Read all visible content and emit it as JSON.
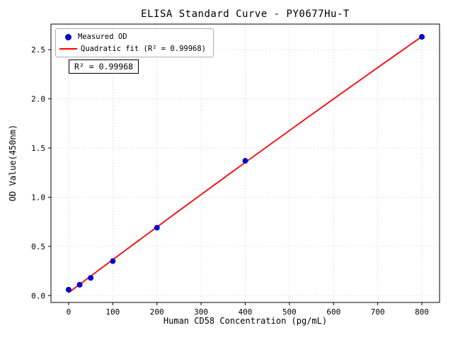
{
  "chart_data": {
    "type": "scatter",
    "title": "ELISA Standard Curve - PY0677Hu-T",
    "xlabel": "Human CD58 Concentration (pg/mL)",
    "ylabel": "OD Value(450nm)",
    "x": [
      0,
      25,
      50,
      100,
      200,
      400,
      800
    ],
    "series": [
      {
        "name": "Measured OD",
        "kind": "scatter",
        "color": "#0000cd",
        "values": [
          0.06,
          0.11,
          0.18,
          0.35,
          0.69,
          1.37,
          2.63
        ]
      },
      {
        "name": "Quadratic fit (R² = 0.99968)",
        "kind": "quadratic-fit-line",
        "color": "#ff0000"
      }
    ],
    "legend_position": "upper left",
    "annotation": "R² = 0.99968",
    "r_squared": 0.99968,
    "xlim": [
      -40,
      840
    ],
    "ylim": [
      -0.07,
      2.76
    ],
    "xticks": [
      0,
      100,
      200,
      300,
      400,
      500,
      600,
      700,
      800
    ],
    "yticks": [
      0.0,
      0.5,
      1.0,
      1.5,
      2.0,
      2.5
    ],
    "grid": true,
    "grid_color": "#c0c0c0",
    "spine_color": "#000000",
    "background_color": "#ffffff"
  }
}
